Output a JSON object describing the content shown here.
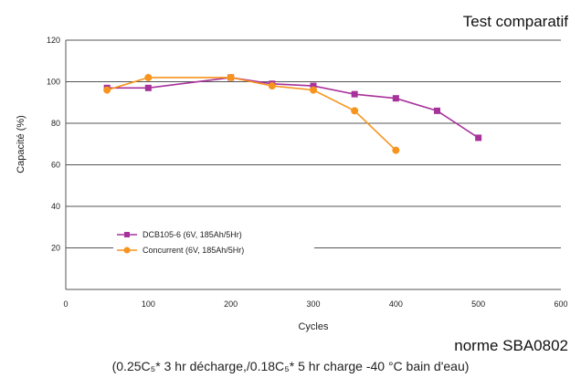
{
  "header": {
    "title": "Test comparatif"
  },
  "footer": {
    "standard": "norme SBA0802",
    "conditions": "(0.25C₅* 3 hr décharge,/0.18C₅* 5 hr charge -40 °C bain d'eau)"
  },
  "colors": {
    "series_1": "#a8329b",
    "series_2": "#f7941d",
    "grid": "#555555"
  },
  "chart_data": {
    "type": "line",
    "title": "Test comparatif",
    "xlabel": "Cycles",
    "ylabel": "Capacité (%)",
    "xlim": [
      0,
      600
    ],
    "ylim": [
      0,
      120
    ],
    "x_ticks": [
      "0",
      "100",
      "200",
      "300",
      "400",
      "500",
      "600"
    ],
    "y_ticks": [
      "20",
      "40",
      "60",
      "80",
      "100",
      "120"
    ],
    "grid": "horizontal",
    "legend_position": "bottom-left",
    "series": [
      {
        "name": "DCB105-6 (6V, 185Ah/5Hr)",
        "color": "#a8329b",
        "marker": "square",
        "x": [
          50,
          100,
          200,
          250,
          300,
          350,
          400,
          450,
          500
        ],
        "y": [
          97,
          97,
          102,
          99,
          98,
          94,
          92,
          86,
          73
        ]
      },
      {
        "name": "Concurrent (6V, 185Ah/5Hr)",
        "color": "#f7941d",
        "marker": "circle",
        "x": [
          50,
          100,
          200,
          250,
          300,
          350,
          400
        ],
        "y": [
          96,
          102,
          102,
          98,
          96,
          86,
          67
        ]
      }
    ]
  }
}
